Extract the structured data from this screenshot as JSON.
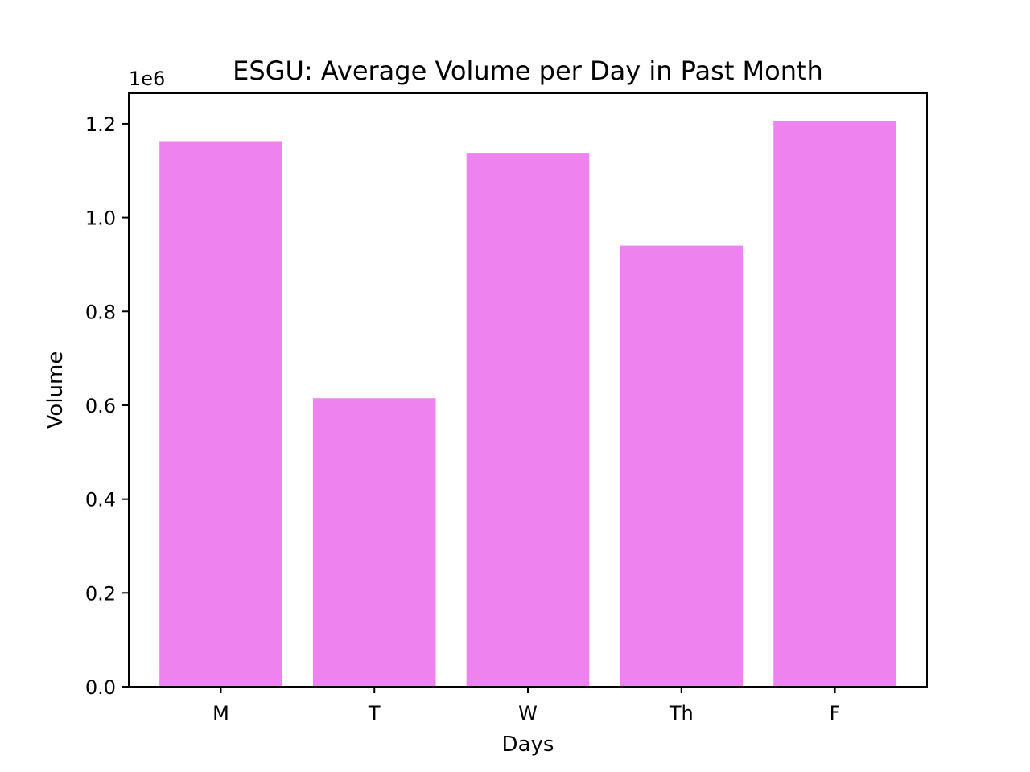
{
  "chart_data": {
    "type": "bar",
    "title": "ESGU: Average Volume per Day in Past Month",
    "xlabel": "Days",
    "ylabel": "Volume",
    "offset_text": "1e6",
    "categories": [
      "M",
      "T",
      "W",
      "Th",
      "F"
    ],
    "values": [
      1163000,
      615000,
      1138000,
      940000,
      1205000
    ],
    "ylim": [
      0,
      1265000
    ],
    "yticks": [
      0,
      200000,
      400000,
      600000,
      800000,
      1000000,
      1200000
    ],
    "ytick_labels": [
      "0.0",
      "0.2",
      "0.4",
      "0.6",
      "0.8",
      "1.0",
      "1.2"
    ],
    "bar_color": "#ee82ee",
    "grid": false
  }
}
